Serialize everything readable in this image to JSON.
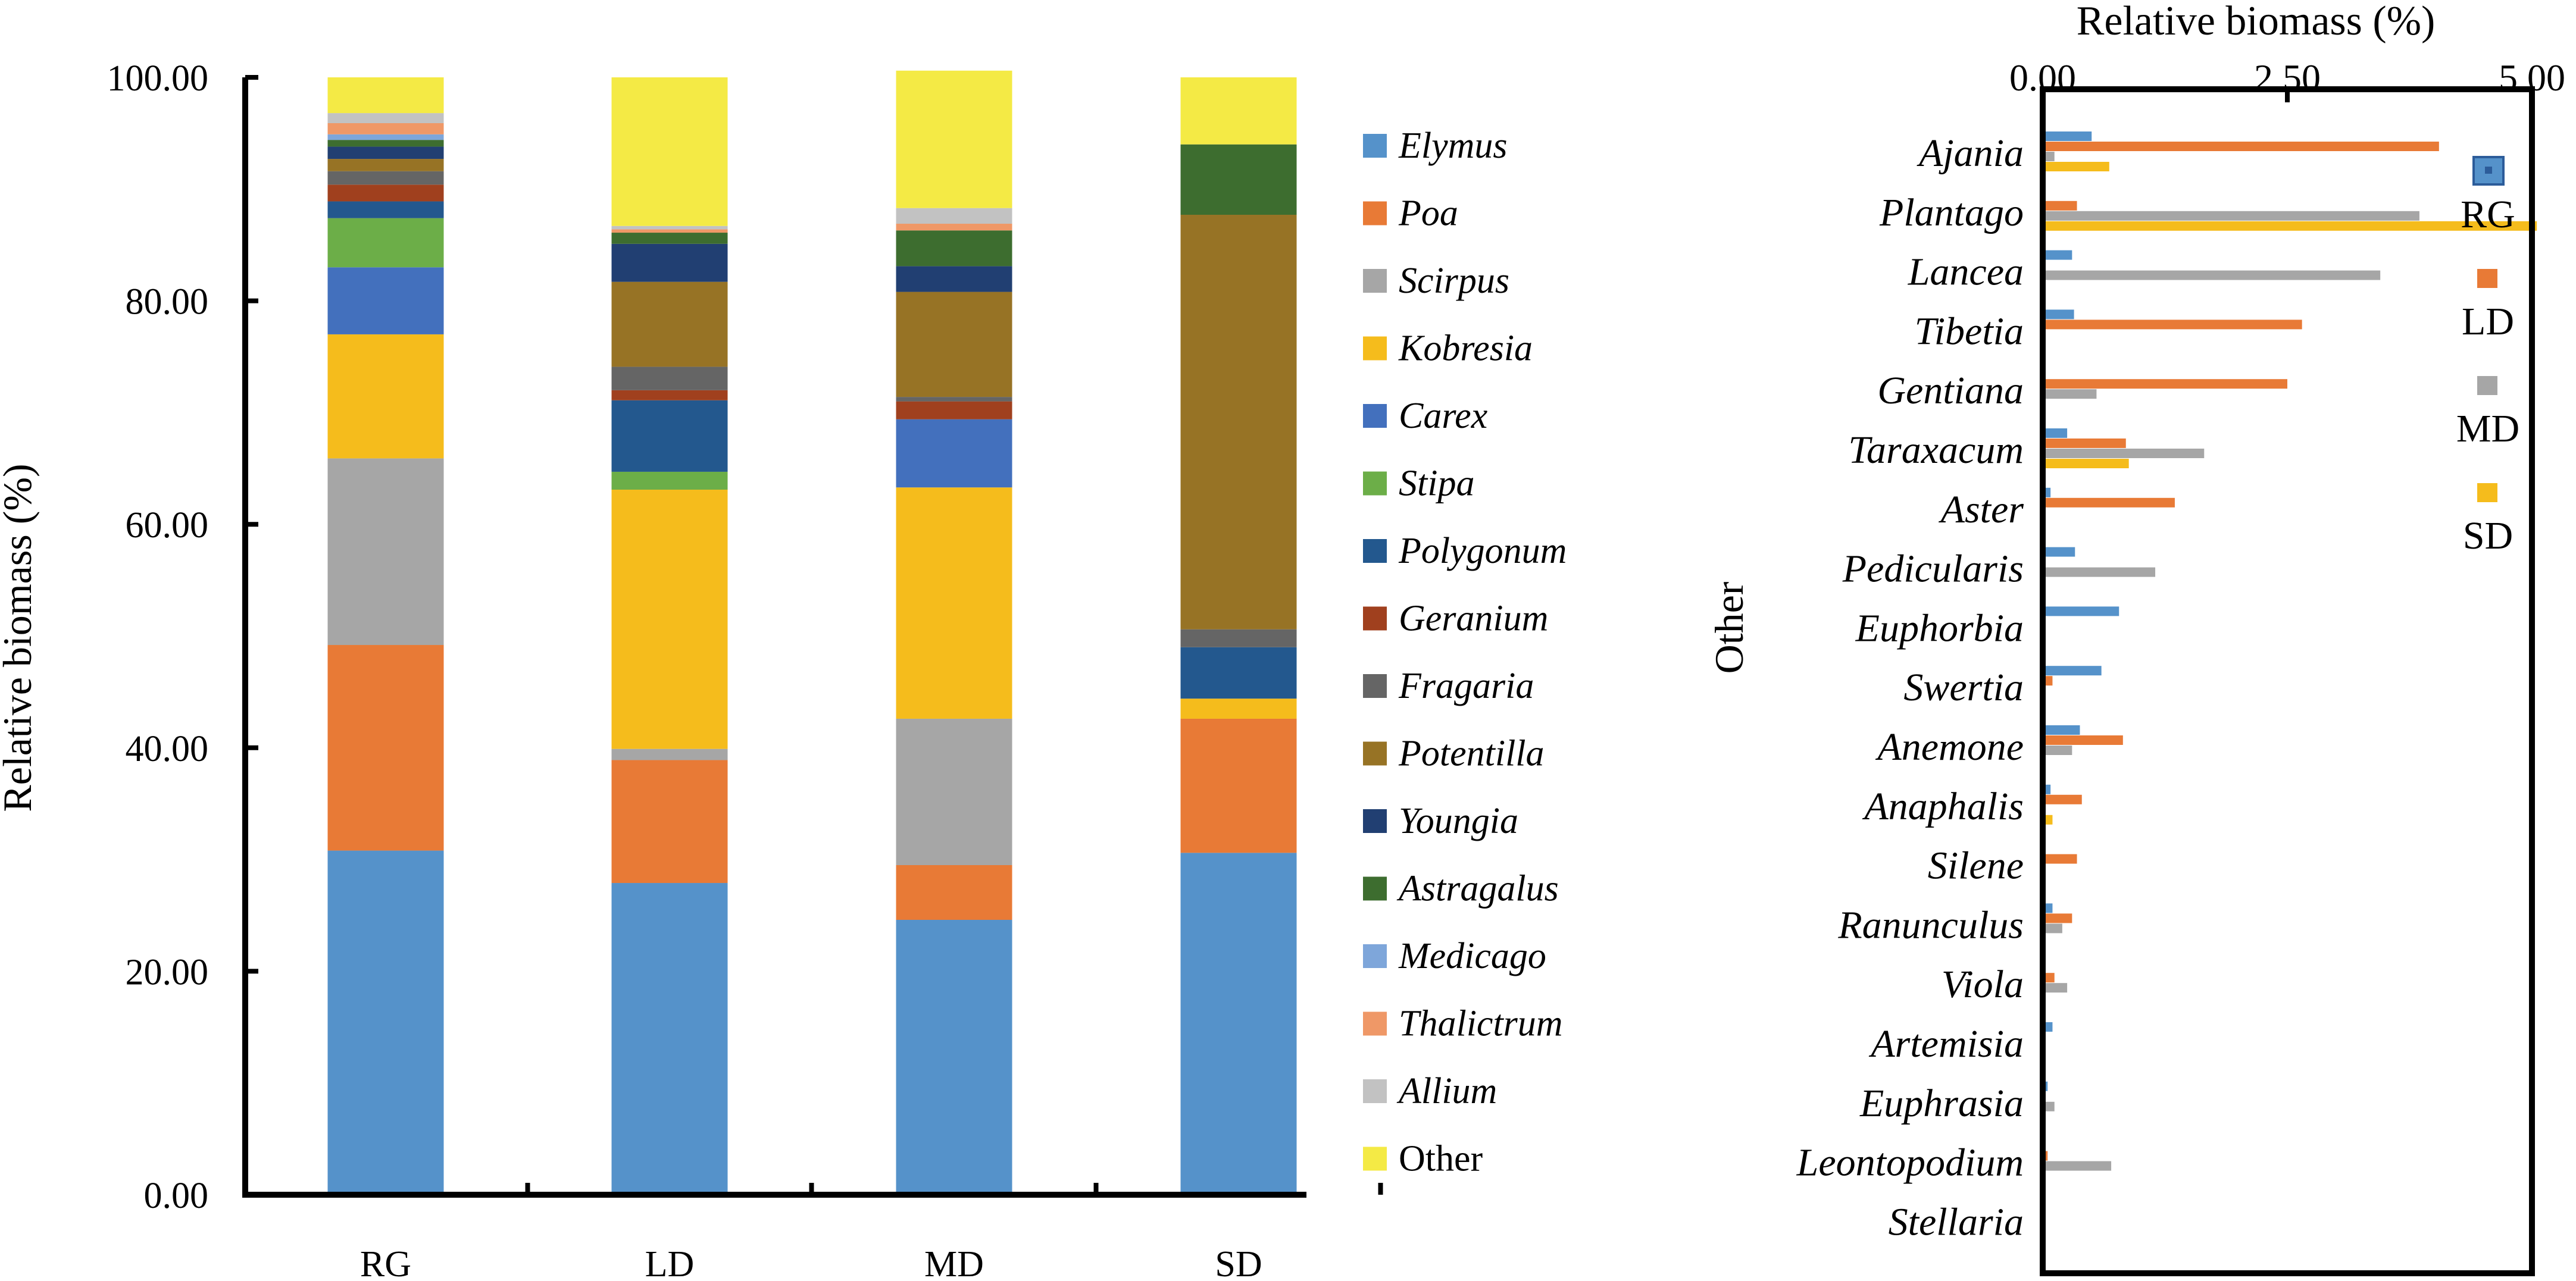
{
  "chart_data": [
    {
      "type": "bar",
      "stacked": true,
      "ylabel": "Relative biomass (%)",
      "ylim": [
        0,
        100
      ],
      "yticks": [
        "0.00",
        "20.00",
        "40.00",
        "60.00",
        "80.00",
        "100.00"
      ],
      "categories": [
        "RG",
        "LD",
        "MD",
        "SD"
      ],
      "series": [
        {
          "name": "Elymus",
          "italic": true,
          "color": "#5592CA",
          "values": [
            30.8,
            27.9,
            24.6,
            30.6
          ]
        },
        {
          "name": "Poa",
          "italic": true,
          "color": "#E87A36",
          "values": [
            18.4,
            11.0,
            4.9,
            12.0
          ]
        },
        {
          "name": "Scirpus",
          "italic": true,
          "color": "#A6A6A6",
          "values": [
            16.7,
            1.0,
            13.1,
            0.0
          ]
        },
        {
          "name": "Kobresia",
          "italic": true,
          "color": "#F5BC1C",
          "values": [
            11.1,
            23.2,
            20.7,
            1.8
          ]
        },
        {
          "name": "Carex",
          "italic": true,
          "color": "#4370BD",
          "values": [
            6.0,
            0.0,
            6.1,
            0.0
          ]
        },
        {
          "name": "Stipa",
          "italic": true,
          "color": "#6CAE48",
          "values": [
            4.4,
            1.6,
            0.0,
            0.0
          ]
        },
        {
          "name": "Polygonum",
          "italic": true,
          "color": "#23588E",
          "values": [
            1.5,
            6.4,
            0.0,
            4.6
          ]
        },
        {
          "name": "Geranium",
          "italic": true,
          "color": "#A0401E",
          "values": [
            1.5,
            0.9,
            1.6,
            0.0
          ]
        },
        {
          "name": "Fragaria",
          "italic": true,
          "color": "#656565",
          "values": [
            1.2,
            2.1,
            0.4,
            1.6
          ]
        },
        {
          "name": "Potentilla",
          "italic": true,
          "color": "#977325",
          "values": [
            1.1,
            7.6,
            9.4,
            37.1
          ]
        },
        {
          "name": "Youngia",
          "italic": true,
          "color": "#213F72",
          "values": [
            1.1,
            3.4,
            2.3,
            0.0
          ]
        },
        {
          "name": "Astragalus",
          "italic": true,
          "color": "#3D6D2F",
          "values": [
            0.6,
            1.0,
            3.2,
            6.3
          ]
        },
        {
          "name": "Medicago",
          "italic": true,
          "color": "#7EA6DA",
          "values": [
            0.5,
            0.0,
            0.0,
            0.0
          ]
        },
        {
          "name": "Thalictrum",
          "italic": true,
          "color": "#EF9867",
          "values": [
            1.0,
            0.3,
            0.6,
            0.0
          ]
        },
        {
          "name": "Allium",
          "italic": true,
          "color": "#C2C2C2",
          "values": [
            0.9,
            0.3,
            1.4,
            0.0
          ]
        },
        {
          "name": "Other",
          "italic": false,
          "color": "#F4EA45",
          "values": [
            3.2,
            13.3,
            12.3,
            6.0
          ]
        }
      ]
    },
    {
      "type": "bar",
      "orientation": "horizontal",
      "title": "Relative biomass (%)",
      "ylabel": "Other",
      "xlim": [
        0,
        5
      ],
      "xticks": [
        "0.00",
        "2.50",
        "5.00"
      ],
      "categories": [
        "Ajania",
        "Plantago",
        "Lancea",
        "Tibetia",
        "Gentiana",
        "Taraxacum",
        "Aster",
        "Pedicularis",
        "Euphorbia",
        "Swertia",
        "Anemone",
        "Anaphalis",
        "Silene",
        "Ranunculus",
        "Viola",
        "Artemisia",
        "Euphrasia",
        "Leontopodium",
        "Stellaria"
      ],
      "series": [
        {
          "name": "RG",
          "color": "#5592CA",
          "values": [
            0.5,
            0.0,
            0.3,
            0.32,
            0.0,
            0.25,
            0.08,
            0.33,
            0.78,
            0.6,
            0.38,
            0.08,
            0.0,
            0.1,
            0.0,
            0.1,
            0.05,
            0.0,
            0.0
          ]
        },
        {
          "name": "LD",
          "color": "#E87A36",
          "values": [
            4.05,
            0.35,
            0.0,
            2.65,
            2.5,
            0.85,
            1.35,
            0.0,
            0.0,
            0.1,
            0.82,
            0.4,
            0.35,
            0.3,
            0.12,
            0.0,
            0.0,
            0.05,
            0.0
          ]
        },
        {
          "name": "MD",
          "color": "#A6A6A6",
          "values": [
            0.12,
            3.85,
            3.45,
            0.0,
            0.55,
            1.65,
            0.0,
            1.15,
            0.0,
            0.0,
            0.3,
            0.0,
            0.0,
            0.2,
            0.25,
            0.0,
            0.12,
            0.7,
            0.0
          ]
        },
        {
          "name": "SD",
          "color": "#F5BC1C",
          "values": [
            0.68,
            5.05,
            0.0,
            0.0,
            0.0,
            0.88,
            0.0,
            0.0,
            0.0,
            0.0,
            0.0,
            0.1,
            0.0,
            0.0,
            0.0,
            0.0,
            0.0,
            0.0,
            0.0
          ]
        }
      ]
    }
  ]
}
